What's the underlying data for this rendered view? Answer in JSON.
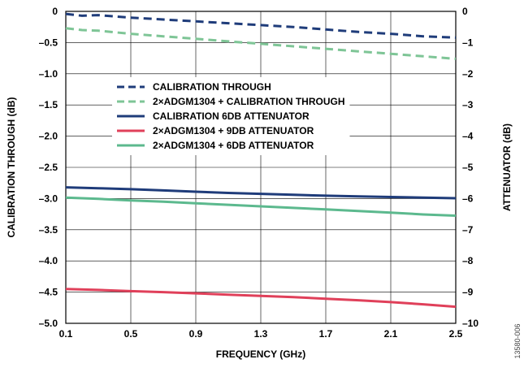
{
  "figure_id": "13580-006",
  "chart_data": {
    "type": "line",
    "title": "",
    "xlabel": "FREQUENCY (GHz)",
    "ylabel": "CALIBRATION THROUGH (dB)",
    "y2label": "ATTENUATOR (dB)",
    "xlim": [
      0.1,
      2.5
    ],
    "ylim": [
      -5.0,
      0
    ],
    "y2lim": [
      -10,
      0
    ],
    "x_ticks": [
      "0.1",
      "0.5",
      "0.9",
      "1.3",
      "1.7",
      "2.1",
      "2.5"
    ],
    "y_ticks": [
      "0",
      "–0.5",
      "–1.0",
      "–1.5",
      "–2.0",
      "–2.5",
      "–3.0",
      "–3.5",
      "–4.0",
      "–4.5",
      "–5.0"
    ],
    "y2_ticks": [
      "0",
      "–1",
      "–2",
      "–3",
      "–4",
      "–5",
      "–6",
      "–7",
      "–8",
      "–9",
      "–10"
    ],
    "grid": true,
    "legend_position": "upper-center",
    "series": [
      {
        "name": "CALIBRATION THROUGH",
        "axis": "left",
        "style": "dashed",
        "color": "#1f3c7a",
        "x": [
          0.1,
          0.2,
          0.3,
          0.5,
          0.7,
          0.9,
          1.1,
          1.3,
          1.5,
          1.7,
          1.9,
          2.1,
          2.3,
          2.5
        ],
        "y": [
          -0.04,
          -0.07,
          -0.06,
          -0.1,
          -0.13,
          -0.16,
          -0.19,
          -0.22,
          -0.25,
          -0.29,
          -0.33,
          -0.36,
          -0.4,
          -0.42
        ]
      },
      {
        "name": "2×ADGM1304 + CALIBRATION THROUGH",
        "axis": "left",
        "style": "dashed",
        "color": "#7ec596",
        "x": [
          0.1,
          0.2,
          0.3,
          0.5,
          0.7,
          0.9,
          1.1,
          1.3,
          1.5,
          1.7,
          1.9,
          2.1,
          2.3,
          2.5
        ],
        "y": [
          -0.27,
          -0.3,
          -0.31,
          -0.36,
          -0.4,
          -0.44,
          -0.48,
          -0.52,
          -0.56,
          -0.6,
          -0.64,
          -0.68,
          -0.72,
          -0.76
        ]
      },
      {
        "name": "CALIBRATION 6DB ATTENUATOR",
        "axis": "right",
        "style": "solid",
        "color": "#1f3c7a",
        "x": [
          0.1,
          0.3,
          0.5,
          0.7,
          0.9,
          1.1,
          1.3,
          1.5,
          1.7,
          1.9,
          2.1,
          2.3,
          2.5
        ],
        "y": [
          -5.64,
          -5.67,
          -5.7,
          -5.74,
          -5.78,
          -5.82,
          -5.85,
          -5.88,
          -5.91,
          -5.93,
          -5.95,
          -5.97,
          -5.99
        ]
      },
      {
        "name": "2×ADGM1304  + 9DB ATTENUATOR",
        "axis": "right",
        "style": "solid",
        "color": "#e0405a",
        "x": [
          0.1,
          0.3,
          0.5,
          0.7,
          0.9,
          1.1,
          1.3,
          1.5,
          1.7,
          1.9,
          2.1,
          2.3,
          2.5
        ],
        "y": [
          -8.9,
          -8.93,
          -8.97,
          -9.0,
          -9.04,
          -9.08,
          -9.12,
          -9.16,
          -9.21,
          -9.26,
          -9.32,
          -9.39,
          -9.47
        ]
      },
      {
        "name": "2×ADGM1304 + 6DB ATTENUATOR",
        "axis": "right",
        "style": "solid",
        "color": "#5cb98e",
        "x": [
          0.1,
          0.3,
          0.5,
          0.7,
          0.9,
          1.1,
          1.3,
          1.5,
          1.7,
          1.9,
          2.1,
          2.3,
          2.5
        ],
        "y": [
          -5.97,
          -6.01,
          -6.06,
          -6.1,
          -6.15,
          -6.2,
          -6.25,
          -6.3,
          -6.35,
          -6.4,
          -6.45,
          -6.51,
          -6.55
        ]
      }
    ]
  }
}
